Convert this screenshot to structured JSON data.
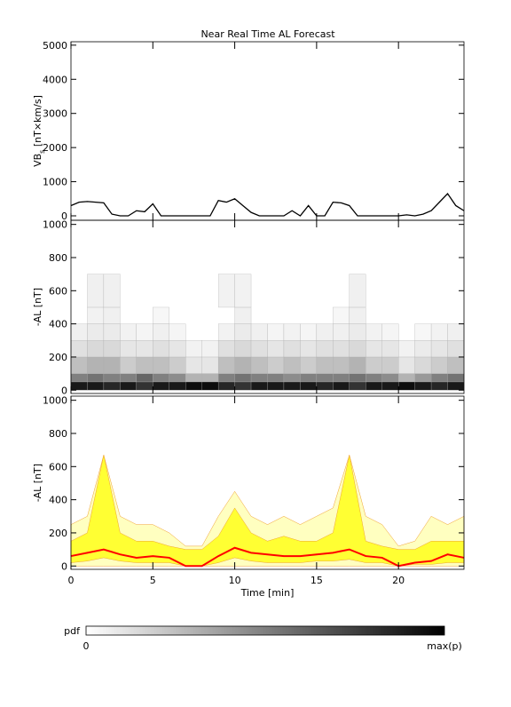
{
  "chart_data": [
    {
      "type": "line",
      "title": "Near Real Time AL Forecast",
      "ylabel": [
        "VB",
        "s",
        " [nT×km/s]"
      ],
      "color": "#000000",
      "xlim": [
        0,
        24
      ],
      "ylim": [
        -130,
        5100
      ],
      "yticks": [
        0,
        1000,
        2000,
        3000,
        4000,
        5000
      ],
      "x": [
        0,
        0.5,
        1,
        1.5,
        2,
        2.5,
        3,
        3.5,
        4,
        4.5,
        5,
        5.5,
        6,
        6.5,
        7,
        7.5,
        8,
        8.5,
        9,
        9.5,
        10,
        10.5,
        11,
        11.5,
        12,
        12.5,
        13,
        13.5,
        14,
        14.5,
        15,
        15.5,
        16,
        16.5,
        17,
        17.5,
        18,
        18.5,
        19,
        19.5,
        20,
        20.5,
        21,
        21.5,
        22,
        22.5,
        23,
        23.5,
        24
      ],
      "values": [
        300,
        400,
        420,
        400,
        380,
        50,
        0,
        0,
        150,
        120,
        350,
        0,
        0,
        0,
        0,
        0,
        0,
        0,
        450,
        400,
        500,
        300,
        100,
        0,
        0,
        0,
        0,
        150,
        0,
        300,
        0,
        0,
        400,
        380,
        300,
        0,
        0,
        0,
        0,
        0,
        0,
        30,
        0,
        50,
        150,
        400,
        650,
        300,
        150
      ]
    },
    {
      "type": "heatmap",
      "ylabel": "-AL [nT]",
      "xlim": [
        0,
        24
      ],
      "ylim": [
        -20,
        1025
      ],
      "yticks": [
        0,
        200,
        400,
        600,
        800,
        1000
      ],
      "xbins": [
        0,
        1,
        2,
        3,
        4,
        5,
        6,
        7,
        8,
        9,
        10,
        11,
        12,
        13,
        14,
        15,
        16,
        17,
        18,
        19,
        20,
        21,
        22,
        23,
        24
      ],
      "ybins": [
        0,
        50,
        100,
        200,
        300,
        400,
        500,
        700
      ],
      "z": [
        [
          0.9,
          0.9,
          0.85,
          0.9,
          0.8,
          0.9,
          0.9,
          0.95,
          0.95,
          0.85,
          0.8,
          0.9,
          0.9,
          0.9,
          0.9,
          0.85,
          0.9,
          0.8,
          0.9,
          0.9,
          0.95,
          0.9,
          0.85,
          0.9
        ],
        [
          0.5,
          0.55,
          0.5,
          0.5,
          0.6,
          0.5,
          0.45,
          0.3,
          0.3,
          0.5,
          0.55,
          0.5,
          0.5,
          0.45,
          0.5,
          0.5,
          0.5,
          0.55,
          0.5,
          0.45,
          0.3,
          0.4,
          0.5,
          0.55
        ],
        [
          0.25,
          0.3,
          0.3,
          0.2,
          0.25,
          0.25,
          0.2,
          0.1,
          0.1,
          0.25,
          0.3,
          0.25,
          0.2,
          0.25,
          0.2,
          0.25,
          0.25,
          0.3,
          0.2,
          0.2,
          0.1,
          0.15,
          0.2,
          0.25
        ],
        [
          0.12,
          0.15,
          0.15,
          0.1,
          0.1,
          0.12,
          0.1,
          0.05,
          0.05,
          0.12,
          0.15,
          0.12,
          0.1,
          0.12,
          0.1,
          0.12,
          0.12,
          0.15,
          0.1,
          0.1,
          0.05,
          0.08,
          0.1,
          0.12
        ],
        [
          0.06,
          0.08,
          0.08,
          0.05,
          0.04,
          0.06,
          0.04,
          0,
          0,
          0.05,
          0.08,
          0.06,
          0.04,
          0.05,
          0.04,
          0.06,
          0.06,
          0.08,
          0.05,
          0.04,
          0,
          0.03,
          0.05,
          0.06
        ],
        [
          0,
          0.05,
          0.06,
          0,
          0,
          0.03,
          0,
          0,
          0,
          0,
          0.06,
          0,
          0,
          0,
          0,
          0,
          0.03,
          0.06,
          0,
          0,
          0,
          0,
          0,
          0
        ],
        [
          0,
          0.06,
          0.06,
          0,
          0,
          0,
          0,
          0,
          0,
          0.05,
          0.05,
          0,
          0,
          0,
          0,
          0,
          0,
          0.06,
          0,
          0,
          0,
          0,
          0,
          0
        ]
      ]
    },
    {
      "type": "band",
      "ylabel": "-AL [nT]",
      "xlabel": "Time [min]",
      "xlim": [
        0,
        24
      ],
      "xticks": [
        0,
        5,
        10,
        15,
        20
      ],
      "ylim": [
        -20,
        1025
      ],
      "yticks": [
        0,
        200,
        400,
        600,
        800,
        1000
      ],
      "x": [
        0,
        1,
        2,
        3,
        4,
        5,
        6,
        7,
        8,
        9,
        10,
        11,
        12,
        13,
        14,
        15,
        16,
        17,
        18,
        19,
        20,
        21,
        22,
        23,
        24
      ],
      "bands": [
        {
          "color": "#ffffc0",
          "lower": [
            0,
            0,
            0,
            0,
            0,
            0,
            0,
            0,
            0,
            0,
            0,
            0,
            0,
            0,
            0,
            0,
            0,
            0,
            0,
            0,
            0,
            0,
            0,
            0,
            0
          ],
          "upper": [
            250,
            300,
            670,
            300,
            250,
            250,
            200,
            120,
            120,
            300,
            450,
            300,
            250,
            300,
            250,
            300,
            350,
            670,
            300,
            250,
            120,
            150,
            300,
            250,
            300
          ]
        },
        {
          "color": "#ffff33",
          "lower": [
            20,
            30,
            50,
            30,
            20,
            20,
            20,
            0,
            0,
            20,
            50,
            30,
            20,
            20,
            20,
            30,
            30,
            40,
            20,
            20,
            0,
            10,
            10,
            20,
            20
          ],
          "upper": [
            150,
            200,
            670,
            200,
            150,
            150,
            120,
            100,
            100,
            180,
            350,
            200,
            150,
            180,
            150,
            150,
            200,
            670,
            150,
            120,
            100,
            100,
            150,
            150,
            150
          ]
        }
      ],
      "line": {
        "color": "#ff0000",
        "values": [
          60,
          80,
          100,
          70,
          50,
          60,
          50,
          0,
          0,
          60,
          110,
          80,
          70,
          60,
          60,
          70,
          80,
          100,
          60,
          50,
          0,
          20,
          30,
          70,
          50
        ]
      }
    },
    {
      "type": "colorbar",
      "label": "pdf",
      "min_label": "0",
      "max_label": "max(p)"
    }
  ]
}
